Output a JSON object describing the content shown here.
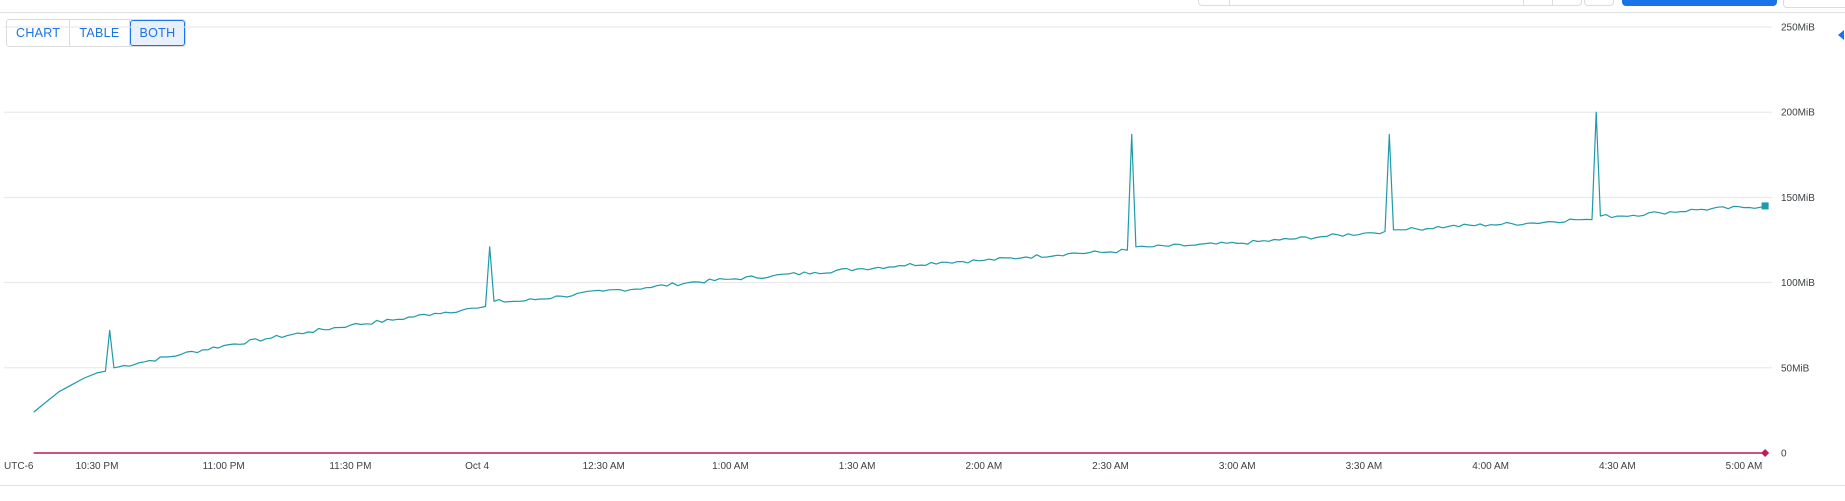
{
  "view_toggle": {
    "chart_label": "CHART",
    "table_label": "TABLE",
    "both_label": "BOTH",
    "selected": "BOTH"
  },
  "colors": {
    "series": "#1e9aa8",
    "baseline": "#c2185b",
    "grid": "#e6e6e6",
    "accent": "#1a73e8"
  },
  "chart_data": {
    "type": "line",
    "timezone_label": "UTC-6",
    "x_tick_labels": [
      "10:30 PM",
      "11:00 PM",
      "11:30 PM",
      "Oct 4",
      "12:30 AM",
      "1:00 AM",
      "1:30 AM",
      "2:00 AM",
      "2:30 AM",
      "3:00 AM",
      "3:30 AM",
      "4:00 AM",
      "4:30 AM",
      "5:00 AM"
    ],
    "y_tick_labels": [
      "0",
      "50MiB",
      "100MiB",
      "150MiB",
      "200MiB",
      "250MiB"
    ],
    "ylim": [
      0,
      250
    ],
    "y_unit": "MiB",
    "grid": true,
    "series": [
      {
        "points": [
          [
            "22:15",
            24
          ],
          [
            "22:18",
            30
          ],
          [
            "22:21",
            36
          ],
          [
            "22:24",
            40
          ],
          [
            "22:27",
            44
          ],
          [
            "22:30",
            47
          ],
          [
            "22:32",
            48
          ],
          [
            "22:33",
            72
          ],
          [
            "22:34",
            50
          ],
          [
            "22:40",
            53
          ],
          [
            "22:50",
            58
          ],
          [
            "23:00",
            63
          ],
          [
            "23:10",
            67
          ],
          [
            "23:20",
            71
          ],
          [
            "23:30",
            75
          ],
          [
            "23:40",
            78
          ],
          [
            "23:50",
            82
          ],
          [
            "00:00",
            85
          ],
          [
            "00:02",
            86
          ],
          [
            "00:03",
            121
          ],
          [
            "00:04",
            89
          ],
          [
            "00:10",
            89
          ],
          [
            "00:20",
            92
          ],
          [
            "00:30",
            95
          ],
          [
            "00:40",
            97
          ],
          [
            "00:50",
            100
          ],
          [
            "01:00",
            102
          ],
          [
            "01:10",
            104
          ],
          [
            "01:20",
            106
          ],
          [
            "01:30",
            108
          ],
          [
            "01:40",
            110
          ],
          [
            "01:50",
            112
          ],
          [
            "02:00",
            113
          ],
          [
            "02:10",
            115
          ],
          [
            "02:20",
            117
          ],
          [
            "02:30",
            118
          ],
          [
            "02:34",
            119
          ],
          [
            "02:35",
            187
          ],
          [
            "02:36",
            121
          ],
          [
            "02:40",
            121
          ],
          [
            "02:50",
            122
          ],
          [
            "03:00",
            123
          ],
          [
            "03:10",
            125
          ],
          [
            "03:20",
            127
          ],
          [
            "03:30",
            129
          ],
          [
            "03:35",
            130
          ],
          [
            "03:36",
            187
          ],
          [
            "03:37",
            131
          ],
          [
            "03:40",
            131
          ],
          [
            "03:50",
            133
          ],
          [
            "04:00",
            134
          ],
          [
            "04:10",
            135
          ],
          [
            "04:20",
            137
          ],
          [
            "04:24",
            137
          ],
          [
            "04:25",
            200
          ],
          [
            "04:26",
            139
          ],
          [
            "04:30",
            139
          ],
          [
            "04:40",
            141
          ],
          [
            "04:50",
            143
          ],
          [
            "05:00",
            144
          ],
          [
            "05:05",
            145
          ]
        ],
        "end_value": 145
      },
      {
        "points": [
          [
            "22:15",
            0
          ],
          [
            "05:05",
            0
          ]
        ]
      }
    ]
  }
}
